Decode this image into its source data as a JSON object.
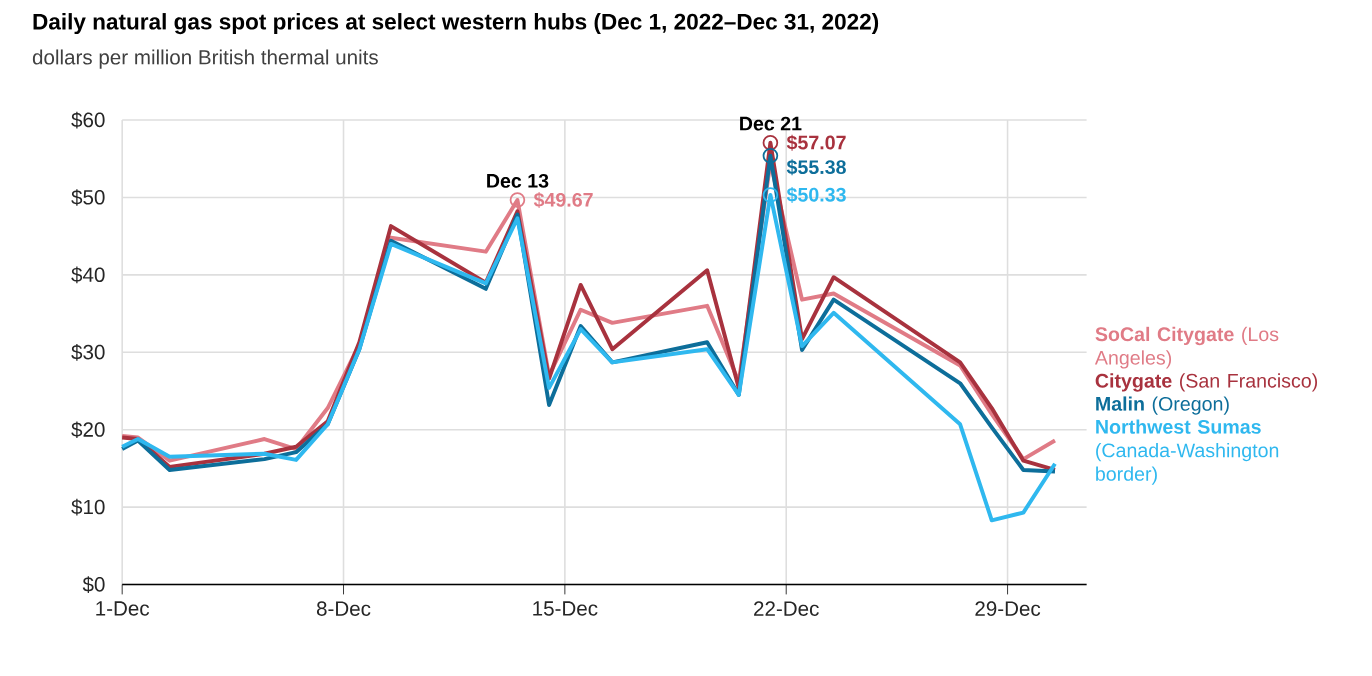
{
  "chart_data": {
    "type": "line",
    "title": "Daily natural gas spot prices at select western hubs (Dec 1, 2022–Dec 31, 2022)",
    "subtitle": "dollars per million British thermal units",
    "x": [
      "2022-12-01",
      "2022-12-01T12:00",
      "2022-12-02T12:00",
      "2022-12-05T12:00",
      "2022-12-06T12:00",
      "2022-12-07T12:00",
      "2022-12-08T12:00",
      "2022-12-09T12:00",
      "2022-12-12T12:00",
      "2022-12-13T12:00",
      "2022-12-14T12:00",
      "2022-12-15T12:00",
      "2022-12-16T12:00",
      "2022-12-19T12:00",
      "2022-12-20T12:00",
      "2022-12-21T12:00",
      "2022-12-22T12:00",
      "2022-12-23T12:00",
      "2022-12-27T12:00",
      "2022-12-28T12:00",
      "2022-12-29T12:00",
      "2022-12-30T12:00"
    ],
    "xlim": [
      "2022-12-01",
      "2022-12-31T12:00"
    ],
    "xticks": [
      {
        "value": "2022-12-01",
        "label": "1-Dec"
      },
      {
        "value": "2022-12-08",
        "label": "8-Dec"
      },
      {
        "value": "2022-12-15",
        "label": "15-Dec"
      },
      {
        "value": "2022-12-22",
        "label": "22-Dec"
      },
      {
        "value": "2022-12-29",
        "label": "29-Dec"
      }
    ],
    "ylim": [
      0,
      60
    ],
    "yticks": [
      {
        "value": 0,
        "label": "$0"
      },
      {
        "value": 10,
        "label": "$10"
      },
      {
        "value": 20,
        "label": "$20"
      },
      {
        "value": 30,
        "label": "$30"
      },
      {
        "value": 40,
        "label": "$40"
      },
      {
        "value": 50,
        "label": "$50"
      },
      {
        "value": 60,
        "label": "$60"
      }
    ],
    "grid": true,
    "legend": "right",
    "series": [
      {
        "name": "**SoCal Citygate** (Los Angeles)",
        "color": "#e07b86",
        "values": [
          19.2,
          19,
          16,
          18.8,
          17.5,
          22.8,
          31,
          44.8,
          43,
          49.67,
          27,
          35.5,
          33.8,
          36,
          26.2,
          54.5,
          36.8,
          37.6,
          28.3,
          22,
          16.2,
          18.6
        ],
        "value_labels": [
          null,
          null,
          null,
          null,
          null,
          null,
          null,
          null,
          null,
          "$49.67",
          null,
          null,
          null,
          null,
          null,
          null,
          null,
          null,
          null,
          null,
          null,
          null
        ]
      },
      {
        "name": "**Citygate** (San Francisco)",
        "color": "#a8323e",
        "values": [
          19,
          18.8,
          15.2,
          16.9,
          17.8,
          21.1,
          31.3,
          46.3,
          39,
          48.2,
          26.6,
          38.7,
          30.4,
          40.6,
          25.4,
          57.07,
          31.7,
          39.7,
          28.7,
          22.8,
          16,
          14.8
        ],
        "value_labels": [
          null,
          null,
          null,
          null,
          null,
          null,
          null,
          null,
          null,
          null,
          null,
          null,
          null,
          null,
          null,
          "$57.07",
          null,
          null,
          null,
          null,
          null,
          null
        ]
      },
      {
        "name": "**Malin** (Oregon)",
        "color": "#0d6e9a",
        "values": [
          17.5,
          18.6,
          14.8,
          16.2,
          17.1,
          20.7,
          30.4,
          44.4,
          38.2,
          47.8,
          23.2,
          33.4,
          28.7,
          31.3,
          24.5,
          55.38,
          30.3,
          36.8,
          26,
          20.3,
          14.8,
          14.6
        ],
        "value_labels": [
          null,
          null,
          null,
          null,
          null,
          null,
          null,
          null,
          null,
          null,
          null,
          null,
          null,
          null,
          null,
          "$55.38",
          null,
          null,
          null,
          null,
          null,
          null
        ]
      },
      {
        "name": "**Northwest Sumas** (Canada-Washington border)",
        "color": "#2fb8ef",
        "values": [
          17.8,
          18.8,
          16.5,
          16.9,
          16.1,
          20.7,
          30.4,
          44,
          38.9,
          47.3,
          25.4,
          33,
          28.7,
          30.4,
          24.5,
          50.33,
          30.8,
          35.1,
          20.7,
          8.3,
          9.3,
          15.6
        ],
        "value_labels": [
          null,
          null,
          null,
          null,
          null,
          null,
          null,
          null,
          null,
          null,
          null,
          null,
          null,
          null,
          null,
          "$50.33",
          null,
          null,
          null,
          null,
          null,
          null
        ]
      }
    ],
    "annotations": [
      {
        "text": "Dec 13",
        "x": "2022-12-13T12:00",
        "y": 49.67
      },
      {
        "text": "Dec 21",
        "x": "2022-12-21T12:00",
        "y": 57.07
      }
    ]
  }
}
